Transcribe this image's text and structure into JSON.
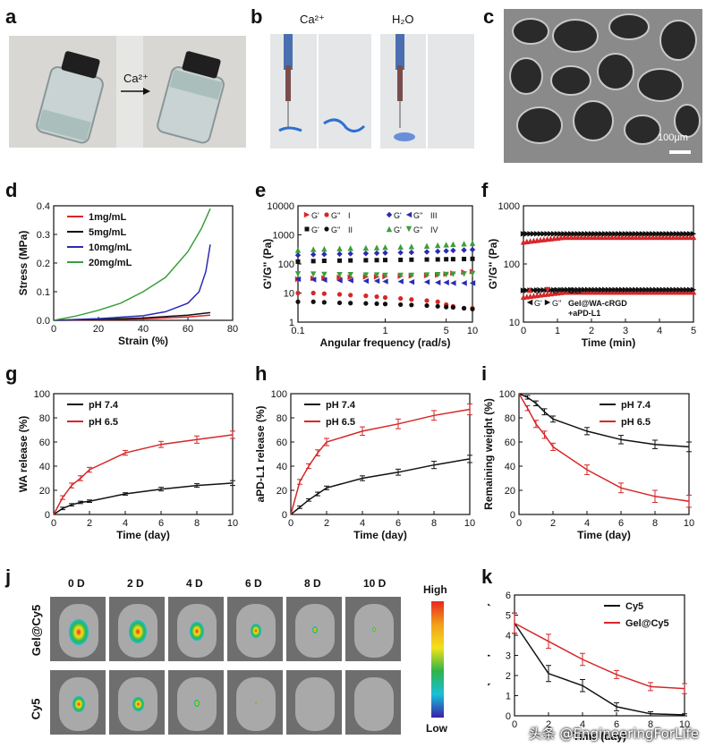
{
  "panel_labels": {
    "a": "a",
    "b": "b",
    "c": "c",
    "d": "d",
    "e": "e",
    "f": "f",
    "g": "g",
    "h": "h",
    "i": "i",
    "j": "j",
    "k": "k"
  },
  "panel_a": {
    "arrow_label": "Ca²⁺"
  },
  "panel_b": {
    "label_left": "Ca²⁺",
    "label_right": "H₂O"
  },
  "panel_c": {
    "scale_bar": "100μm"
  },
  "panel_j": {
    "columns": [
      "0 D",
      "2 D",
      "4 D",
      "6 D",
      "8 D",
      "10 D"
    ],
    "rows": [
      "Gel@Cy5",
      "Cy5"
    ],
    "colorbar_high": "High",
    "colorbar_low": "Low",
    "colors": {
      "high": "#e8271f",
      "mid": "#f2e21a",
      "green": "#2fb44a",
      "cyan": "#18c0d8",
      "low": "#3a1fa8"
    }
  },
  "watermark": "头条 @EngineeringForLife",
  "chart_data": [
    {
      "id": "d",
      "type": "line",
      "xlabel": "Strain (%)",
      "ylabel": "Stress (MPa)",
      "xlim": [
        0,
        80
      ],
      "ylim": [
        0,
        0.4
      ],
      "xticks": [
        "0",
        "20",
        "40",
        "60",
        "80"
      ],
      "yticks": [
        "0.0",
        "0.1",
        "0.2",
        "0.3",
        "0.4"
      ],
      "series": [
        {
          "name": "1mg/mL",
          "color": "#d62728",
          "x": [
            0,
            20,
            40,
            60,
            70
          ],
          "y": [
            0,
            0.002,
            0.005,
            0.012,
            0.018
          ]
        },
        {
          "name": "5mg/mL",
          "color": "#111111",
          "x": [
            0,
            20,
            40,
            60,
            70
          ],
          "y": [
            0,
            0.003,
            0.008,
            0.018,
            0.027
          ]
        },
        {
          "name": "10mg/mL",
          "color": "#2b2bb0",
          "x": [
            0,
            20,
            40,
            50,
            60,
            65,
            68,
            70
          ],
          "y": [
            0,
            0.006,
            0.016,
            0.03,
            0.06,
            0.1,
            0.17,
            0.265
          ]
        },
        {
          "name": "20mg/mL",
          "color": "#3b9e3b",
          "x": [
            0,
            10,
            20,
            30,
            40,
            50,
            60,
            66,
            70
          ],
          "y": [
            0,
            0.015,
            0.035,
            0.06,
            0.1,
            0.15,
            0.24,
            0.32,
            0.39
          ]
        }
      ]
    },
    {
      "id": "e",
      "type": "scatter",
      "xlabel": "Angular frequency (rad/s)",
      "ylabel": "G'/G'' (Pa)",
      "xscale": "log",
      "yscale": "log",
      "xlim": [
        0.1,
        10
      ],
      "ylim": [
        1,
        10000
      ],
      "xticks": [
        {
          "v": 0.1,
          "t": "0.1"
        },
        {
          "v": 1,
          "t": "1"
        },
        {
          "v": 5,
          "t": "5"
        },
        {
          "v": 10,
          "t": "10"
        }
      ],
      "yticks": [
        {
          "v": 1,
          "t": "1"
        },
        {
          "v": 10,
          "t": "10"
        },
        {
          "v": 100,
          "t": "100"
        },
        {
          "v": 1000,
          "t": "1000"
        },
        {
          "v": 10000,
          "t": "10000"
        }
      ],
      "x": [
        0.1,
        0.15,
        0.2,
        0.3,
        0.4,
        0.6,
        0.8,
        1,
        1.5,
        2,
        3,
        4,
        5,
        6,
        8,
        10
      ],
      "legend": [
        {
          "a": "G'",
          "b": "G''",
          "group": "I"
        },
        {
          "a": "G'",
          "b": "G''",
          "group": "II"
        },
        {
          "a": "G'",
          "b": "G''",
          "group": "III"
        },
        {
          "a": "G'",
          "b": "G''",
          "group": "IV"
        }
      ],
      "series": [
        {
          "name": "G' I",
          "group": "I",
          "color": "#d62728",
          "marker": "tri-right",
          "y": [
            30,
            32,
            33,
            34,
            35,
            36,
            36,
            37,
            38,
            39,
            40,
            42,
            45,
            48,
            52,
            55
          ]
        },
        {
          "name": "G'' I",
          "group": "I",
          "color": "#d62728",
          "marker": "circle",
          "y": [
            10,
            10,
            9.5,
            9,
            8.5,
            8,
            7.5,
            7,
            6.5,
            6,
            5.5,
            5,
            4,
            3.5,
            3,
            3
          ]
        },
        {
          "name": "G' II",
          "group": "II",
          "color": "#111111",
          "marker": "square",
          "y": [
            120,
            125,
            128,
            130,
            132,
            134,
            135,
            136,
            138,
            140,
            142,
            143,
            145,
            146,
            148,
            150
          ]
        },
        {
          "name": "G'' II",
          "group": "II",
          "color": "#111111",
          "marker": "circle",
          "y": [
            5,
            5,
            4.8,
            4.6,
            4.5,
            4.4,
            4.3,
            4.2,
            4,
            3.9,
            3.7,
            3.5,
            3.3,
            3.2,
            3,
            2.8
          ]
        },
        {
          "name": "G' III",
          "group": "III",
          "color": "#2b2bb0",
          "marker": "diamond",
          "y": [
            200,
            210,
            215,
            220,
            225,
            230,
            235,
            240,
            245,
            250,
            260,
            270,
            280,
            290,
            300,
            310
          ]
        },
        {
          "name": "G'' III",
          "group": "III",
          "color": "#2b2bb0",
          "marker": "tri-left",
          "y": [
            30,
            29,
            28,
            27,
            27,
            26,
            26,
            25,
            25,
            24,
            24,
            23,
            23,
            22,
            22,
            22
          ]
        },
        {
          "name": "G' IV",
          "group": "IV",
          "color": "#3b9e3b",
          "marker": "tri-up",
          "y": [
            300,
            320,
            330,
            340,
            350,
            360,
            370,
            380,
            390,
            400,
            420,
            440,
            460,
            480,
            500,
            520
          ]
        },
        {
          "name": "G'' IV",
          "group": "IV",
          "color": "#3b9e3b",
          "marker": "tri-down",
          "y": [
            45,
            44,
            43,
            42,
            42,
            41,
            41,
            40,
            40,
            40,
            41,
            42,
            43,
            44,
            45,
            46
          ]
        }
      ]
    },
    {
      "id": "f",
      "type": "scatter",
      "xlabel": "Time (min)",
      "ylabel": "G'/G'' (Pa)",
      "yscale": "log",
      "xlim": [
        0,
        5
      ],
      "ylim": [
        10,
        1000
      ],
      "xticks": [
        "0",
        "1",
        "2",
        "3",
        "4",
        "5"
      ],
      "yticks": [
        {
          "v": 10,
          "t": "10"
        },
        {
          "v": 100,
          "t": "100"
        },
        {
          "v": 1000,
          "t": "1000"
        }
      ],
      "legend": [
        {
          "a": "G'",
          "b": "G''",
          "label": "Gel"
        },
        {
          "a": "G'",
          "b": "G''",
          "label": "Gel@WA-cRGD\n+aPD-L1"
        }
      ],
      "series": [
        {
          "name": "Gel G'",
          "color": "#d62728",
          "start": 240,
          "end": 290
        },
        {
          "name": "Gel G''",
          "color": "#d62728",
          "start": 27,
          "end": 33
        },
        {
          "name": "Gel@WA-cRGD+aPD-L1 G'",
          "color": "#111111",
          "start": 330,
          "end": 330
        },
        {
          "name": "Gel@WA-cRGD+aPD-L1 G''",
          "color": "#111111",
          "start": 35,
          "end": 36
        }
      ]
    },
    {
      "id": "g",
      "type": "line",
      "xlabel": "Time (day)",
      "ylabel": "WA release (%)",
      "xlim": [
        0,
        10
      ],
      "ylim": [
        0,
        100
      ],
      "xticks": [
        "0",
        "2",
        "4",
        "6",
        "8",
        "10"
      ],
      "yticks": [
        "0",
        "20",
        "40",
        "60",
        "80",
        "100"
      ],
      "series": [
        {
          "name": "pH 7.4",
          "color": "#111111",
          "x": [
            0,
            0.5,
            1,
            1.5,
            2,
            4,
            6,
            8,
            10
          ],
          "y": [
            0,
            5,
            8,
            10,
            11,
            17,
            21,
            24,
            26
          ],
          "err": [
            0,
            1,
            1,
            1,
            1,
            1,
            1.5,
            1.5,
            2
          ]
        },
        {
          "name": "pH 6.5",
          "color": "#d62728",
          "x": [
            0,
            0.5,
            1,
            1.5,
            2,
            4,
            6,
            8,
            10
          ],
          "y": [
            0,
            14,
            24,
            30,
            37,
            51,
            58,
            62,
            66
          ],
          "err": [
            0,
            1.5,
            2,
            2,
            2,
            2,
            2.5,
            3,
            3
          ]
        }
      ]
    },
    {
      "id": "h",
      "type": "line",
      "xlabel": "Time (day)",
      "ylabel": "aPD-L1 release (%)",
      "xlim": [
        0,
        10
      ],
      "ylim": [
        0,
        100
      ],
      "xticks": [
        "0",
        "2",
        "4",
        "6",
        "8",
        "10"
      ],
      "yticks": [
        "0",
        "20",
        "40",
        "60",
        "80",
        "100"
      ],
      "series": [
        {
          "name": "pH 7.4",
          "color": "#111111",
          "x": [
            0,
            0.5,
            1,
            1.5,
            2,
            4,
            6,
            8,
            10
          ],
          "y": [
            0,
            6,
            12,
            17,
            22,
            30,
            35,
            41,
            46
          ],
          "err": [
            0,
            1,
            1,
            1.5,
            1.5,
            2,
            2.5,
            3,
            3
          ]
        },
        {
          "name": "pH 6.5",
          "color": "#d62728",
          "x": [
            0,
            0.5,
            1,
            1.5,
            2,
            4,
            6,
            8,
            10
          ],
          "y": [
            0,
            27,
            40,
            51,
            60,
            69,
            75,
            82,
            87
          ],
          "err": [
            0,
            2,
            2,
            2.5,
            3,
            3.5,
            4,
            4,
            4.5
          ]
        }
      ]
    },
    {
      "id": "i",
      "type": "line",
      "xlabel": "Time (day)",
      "ylabel": "Remaining weight (%)",
      "xlim": [
        0,
        10
      ],
      "ylim": [
        0,
        100
      ],
      "xticks": [
        "0",
        "2",
        "4",
        "6",
        "8",
        "10"
      ],
      "yticks": [
        "0",
        "20",
        "40",
        "60",
        "80",
        "100"
      ],
      "series": [
        {
          "name": "pH 7.4",
          "color": "#111111",
          "x": [
            0,
            0.5,
            1,
            1.5,
            2,
            4,
            6,
            8,
            10
          ],
          "y": [
            100,
            97,
            92,
            85,
            79,
            69,
            62,
            58,
            56
          ],
          "err": [
            0,
            1.5,
            2,
            2.5,
            2.5,
            3,
            3.5,
            3.5,
            4
          ]
        },
        {
          "name": "pH 6.5",
          "color": "#d62728",
          "x": [
            0,
            0.5,
            1,
            1.5,
            2,
            4,
            6,
            8,
            10
          ],
          "y": [
            100,
            88,
            75,
            66,
            56,
            37,
            22,
            15,
            11
          ],
          "err": [
            0,
            2,
            3,
            3,
            3,
            4,
            4,
            5,
            5
          ]
        }
      ]
    },
    {
      "id": "k",
      "type": "line",
      "xlabel": "Time (day)",
      "ylabel": "MFI (x10⁸ p/s/cm²/sr)",
      "xlim": [
        0,
        10
      ],
      "ylim": [
        0,
        6
      ],
      "xticks": [
        "0",
        "2",
        "4",
        "6",
        "8",
        "10"
      ],
      "yticks": [
        "0",
        "1",
        "2",
        "3",
        "4",
        "5",
        "6"
      ],
      "series": [
        {
          "name": "Cy5",
          "color": "#111111",
          "x": [
            0,
            2,
            4,
            6,
            8,
            10
          ],
          "y": [
            4.6,
            2.1,
            1.5,
            0.45,
            0.1,
            0.05
          ],
          "err": [
            0.5,
            0.4,
            0.3,
            0.2,
            0.1,
            0.05
          ]
        },
        {
          "name": "Gel@Cy5",
          "color": "#d62728",
          "x": [
            0,
            2,
            4,
            6,
            8,
            10
          ],
          "y": [
            4.6,
            3.7,
            2.8,
            2.05,
            1.45,
            1.35
          ],
          "err": [
            0.5,
            0.35,
            0.3,
            0.2,
            0.2,
            0.25
          ]
        }
      ]
    }
  ]
}
